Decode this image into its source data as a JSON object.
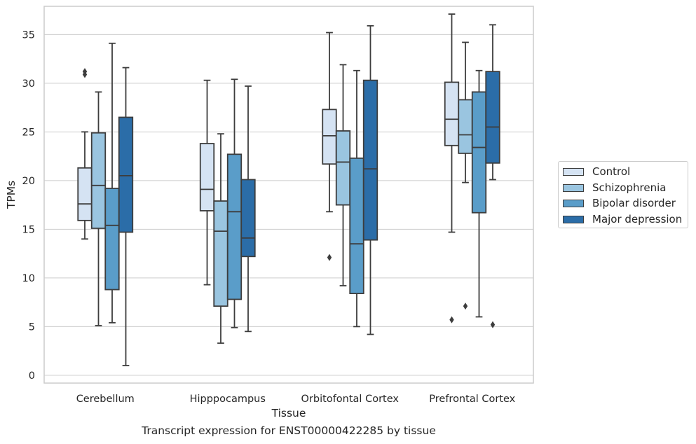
{
  "chart_data": {
    "type": "boxplot",
    "caption": "Transcript expression for ENST00000422285 by tissue",
    "xlabel": "Tissue",
    "ylabel": "TPMs",
    "ylim": [
      -0.8,
      37.9
    ],
    "yticks": [
      0,
      5,
      10,
      15,
      20,
      25,
      30,
      35
    ],
    "grid": "horizontal",
    "legend_position": "outside-right",
    "categories": [
      "Cerebellum",
      "Hipppocampus",
      "Orbitofontal Cortex",
      "Prefrontal Cortex"
    ],
    "series": [
      {
        "name": "Control",
        "color": "#d5e3f3",
        "boxes": [
          {
            "whislo": 14.0,
            "q1": 15.9,
            "med": 17.6,
            "q3": 21.3,
            "whishi": 25.0,
            "fliers": [
              30.9,
              31.2
            ]
          },
          {
            "whislo": 9.3,
            "q1": 16.9,
            "med": 19.1,
            "q3": 23.8,
            "whishi": 30.3,
            "fliers": []
          },
          {
            "whislo": 16.8,
            "q1": 21.7,
            "med": 24.6,
            "q3": 27.3,
            "whishi": 35.2,
            "fliers": [
              12.1
            ]
          },
          {
            "whislo": 14.7,
            "q1": 23.6,
            "med": 26.3,
            "q3": 30.1,
            "whishi": 37.1,
            "fliers": [
              5.7
            ]
          }
        ]
      },
      {
        "name": "Schizophrenia",
        "color": "#9ac5e0",
        "boxes": [
          {
            "whislo": 5.1,
            "q1": 15.1,
            "med": 19.5,
            "q3": 24.9,
            "whishi": 29.1,
            "fliers": []
          },
          {
            "whislo": 3.3,
            "q1": 7.1,
            "med": 14.8,
            "q3": 17.9,
            "whishi": 24.8,
            "fliers": []
          },
          {
            "whislo": 9.2,
            "q1": 17.5,
            "med": 21.9,
            "q3": 25.1,
            "whishi": 31.9,
            "fliers": []
          },
          {
            "whislo": 19.8,
            "q1": 22.8,
            "med": 24.7,
            "q3": 28.3,
            "whishi": 34.2,
            "fliers": [
              7.1
            ]
          }
        ]
      },
      {
        "name": "Bipolar disorder",
        "color": "#5a9dc9",
        "boxes": [
          {
            "whislo": 5.4,
            "q1": 8.8,
            "med": 15.4,
            "q3": 19.2,
            "whishi": 34.1,
            "fliers": []
          },
          {
            "whislo": 4.9,
            "q1": 7.8,
            "med": 16.8,
            "q3": 22.7,
            "whishi": 30.4,
            "fliers": []
          },
          {
            "whislo": 5.0,
            "q1": 8.4,
            "med": 13.5,
            "q3": 22.3,
            "whishi": 31.3,
            "fliers": []
          },
          {
            "whislo": 6.0,
            "q1": 16.7,
            "med": 23.4,
            "q3": 29.1,
            "whishi": 31.3,
            "fliers": []
          }
        ]
      },
      {
        "name": "Major depression",
        "color": "#2b6da8",
        "boxes": [
          {
            "whislo": 1.0,
            "q1": 14.7,
            "med": 20.5,
            "q3": 26.5,
            "whishi": 31.6,
            "fliers": []
          },
          {
            "whislo": 4.5,
            "q1": 12.2,
            "med": 14.1,
            "q3": 20.1,
            "whishi": 29.7,
            "fliers": []
          },
          {
            "whislo": 4.2,
            "q1": 13.9,
            "med": 21.2,
            "q3": 30.3,
            "whishi": 35.9,
            "fliers": []
          },
          {
            "whislo": 20.1,
            "q1": 21.8,
            "med": 25.5,
            "q3": 31.2,
            "whishi": 36.0,
            "fliers": [
              5.2
            ]
          }
        ]
      }
    ]
  }
}
